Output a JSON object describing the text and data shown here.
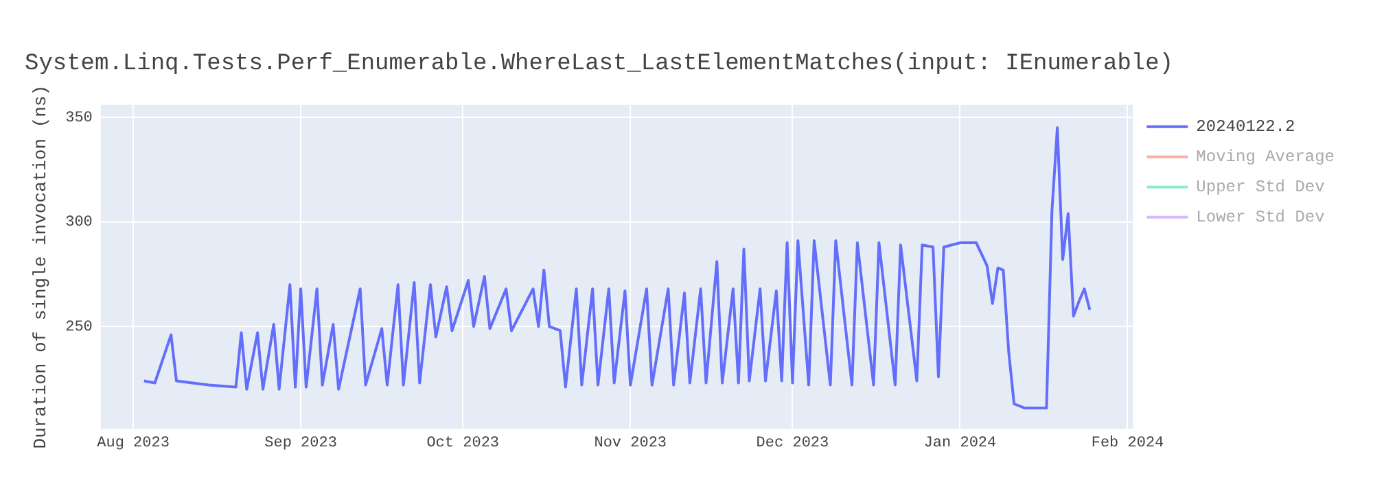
{
  "chart_data": {
    "type": "line",
    "title": "System.Linq.Tests.Perf_Enumerable.WhereLast_LastElementMatches(input: IEnumerable)",
    "ylabel": "Duration of single invocation (ns)",
    "x": [
      "2023-08-03",
      "2023-08-05",
      "2023-08-08",
      "2023-08-09",
      "2023-08-12",
      "2023-08-15",
      "2023-08-20",
      "2023-08-21",
      "2023-08-22",
      "2023-08-24",
      "2023-08-25",
      "2023-08-27",
      "2023-08-28",
      "2023-08-30",
      "2023-08-31",
      "2023-09-01",
      "2023-09-02",
      "2023-09-04",
      "2023-09-05",
      "2023-09-07",
      "2023-09-08",
      "2023-09-12",
      "2023-09-13",
      "2023-09-16",
      "2023-09-17",
      "2023-09-19",
      "2023-09-20",
      "2023-09-22",
      "2023-09-23",
      "2023-09-25",
      "2023-09-26",
      "2023-09-28",
      "2023-09-29",
      "2023-10-02",
      "2023-10-03",
      "2023-10-05",
      "2023-10-06",
      "2023-10-09",
      "2023-10-10",
      "2023-10-14",
      "2023-10-15",
      "2023-10-16",
      "2023-10-17",
      "2023-10-19",
      "2023-10-20",
      "2023-10-22",
      "2023-10-23",
      "2023-10-25",
      "2023-10-26",
      "2023-10-28",
      "2023-10-29",
      "2023-10-31",
      "2023-11-01",
      "2023-11-04",
      "2023-11-05",
      "2023-11-08",
      "2023-11-09",
      "2023-11-11",
      "2023-11-12",
      "2023-11-14",
      "2023-11-15",
      "2023-11-17",
      "2023-11-18",
      "2023-11-20",
      "2023-11-21",
      "2023-11-22",
      "2023-11-23",
      "2023-11-25",
      "2023-11-26",
      "2023-11-28",
      "2023-11-29",
      "2023-11-30",
      "2023-12-01",
      "2023-12-02",
      "2023-12-04",
      "2023-12-05",
      "2023-12-08",
      "2023-12-09",
      "2023-12-12",
      "2023-12-13",
      "2023-12-16",
      "2023-12-17",
      "2023-12-20",
      "2023-12-21",
      "2023-12-24",
      "2023-12-25",
      "2023-12-27",
      "2023-12-28",
      "2023-12-29",
      "2024-01-01",
      "2024-01-04",
      "2024-01-06",
      "2024-01-07",
      "2024-01-08",
      "2024-01-09",
      "2024-01-10",
      "2024-01-11",
      "2024-01-13",
      "2024-01-17",
      "2024-01-18",
      "2024-01-19",
      "2024-01-20",
      "2024-01-21",
      "2024-01-22",
      "2024-01-23",
      "2024-01-24",
      "2024-01-25"
    ],
    "series": [
      {
        "name": "20240122.2",
        "color": "#636efa",
        "values": [
          224,
          223,
          246,
          224,
          223,
          222,
          221,
          247,
          220,
          247,
          220,
          251,
          220,
          270,
          221,
          268,
          221,
          268,
          222,
          251,
          220,
          268,
          222,
          249,
          222,
          270,
          222,
          271,
          223,
          270,
          245,
          269,
          248,
          272,
          250,
          274,
          249,
          268,
          248,
          268,
          250,
          277,
          250,
          248,
          221,
          268,
          222,
          268,
          222,
          268,
          223,
          267,
          222,
          268,
          222,
          268,
          222,
          266,
          223,
          268,
          223,
          281,
          223,
          268,
          223,
          287,
          224,
          268,
          224,
          267,
          224,
          290,
          223,
          291,
          222,
          291,
          222,
          291,
          222,
          290,
          222,
          290,
          222,
          289,
          224,
          289,
          288,
          226,
          288,
          290,
          290,
          279,
          261,
          278,
          277,
          238,
          213,
          211,
          211,
          305,
          345,
          282,
          304,
          255,
          262,
          268,
          258
        ]
      },
      {
        "name": "Moving Average",
        "color": "#ef553b",
        "values": [
          null,
          null,
          null,
          null,
          null,
          null,
          null,
          null,
          null,
          null,
          null,
          null,
          null,
          null,
          null,
          null,
          null,
          null,
          null,
          null,
          null,
          null,
          null,
          null,
          null,
          null,
          null,
          null,
          null,
          null,
          null,
          null,
          null,
          null,
          null,
          null,
          null,
          null,
          null,
          null,
          null,
          null,
          null,
          null,
          null,
          null,
          null,
          null,
          null,
          null,
          null,
          null,
          null,
          null,
          null,
          null,
          null,
          null,
          null,
          null,
          null,
          null,
          null,
          null,
          null,
          null,
          null,
          null,
          null,
          null,
          null,
          null,
          null,
          null,
          null,
          null,
          null,
          null,
          null,
          null,
          null,
          null,
          null,
          null,
          null,
          null,
          null,
          null,
          null,
          null,
          null,
          null,
          null,
          null,
          null,
          null,
          null,
          null,
          null,
          null,
          null,
          null,
          null,
          null,
          null,
          null,
          null
        ]
      },
      {
        "name": "Upper Std Dev",
        "color": "#00cc96",
        "values": [
          null,
          null,
          null,
          null,
          null,
          null,
          null,
          null,
          null,
          null,
          null,
          null,
          null,
          null,
          null,
          null,
          null,
          null,
          null,
          null,
          null,
          null,
          null,
          null,
          null,
          null,
          null,
          null,
          null,
          null,
          null,
          null,
          null,
          null,
          null,
          null,
          null,
          null,
          null,
          null,
          null,
          null,
          null,
          null,
          null,
          null,
          null,
          null,
          null,
          null,
          null,
          null,
          null,
          null,
          null,
          null,
          null,
          null,
          null,
          null,
          null,
          null,
          null,
          null,
          null,
          null,
          null,
          null,
          null,
          null,
          null,
          null,
          null,
          null,
          null,
          null,
          null,
          null,
          null,
          null,
          null,
          null,
          null,
          null,
          null,
          null,
          null,
          null,
          null,
          null,
          null,
          null,
          null,
          null,
          null,
          null,
          null,
          null,
          null,
          null,
          null,
          null,
          null,
          null,
          null,
          null,
          null
        ]
      },
      {
        "name": "Lower Std Dev",
        "color": "#ab63fa",
        "values": [
          null,
          null,
          null,
          null,
          null,
          null,
          null,
          null,
          null,
          null,
          null,
          null,
          null,
          null,
          null,
          null,
          null,
          null,
          null,
          null,
          null,
          null,
          null,
          null,
          null,
          null,
          null,
          null,
          null,
          null,
          null,
          null,
          null,
          null,
          null,
          null,
          null,
          null,
          null,
          null,
          null,
          null,
          null,
          null,
          null,
          null,
          null,
          null,
          null,
          null,
          null,
          null,
          null,
          null,
          null,
          null,
          null,
          null,
          null,
          null,
          null,
          null,
          null,
          null,
          null,
          null,
          null,
          null,
          null,
          null,
          null,
          null,
          null,
          null,
          null,
          null,
          null,
          null,
          null,
          null,
          null,
          null,
          null,
          null,
          null,
          null,
          null,
          null,
          null,
          null,
          null,
          null,
          null,
          null,
          null,
          null,
          null,
          null,
          null,
          null,
          null,
          null,
          null,
          null,
          null,
          null,
          null
        ]
      }
    ],
    "xlim": [
      "2023-07-26",
      "2024-02-02"
    ],
    "xticks": [
      {
        "value": "2023-08-01",
        "label": "Aug 2023"
      },
      {
        "value": "2023-09-01",
        "label": "Sep 2023"
      },
      {
        "value": "2023-10-01",
        "label": "Oct 2023"
      },
      {
        "value": "2023-11-01",
        "label": "Nov 2023"
      },
      {
        "value": "2023-12-01",
        "label": "Dec 2023"
      },
      {
        "value": "2024-01-01",
        "label": "Jan 2024"
      },
      {
        "value": "2024-02-01",
        "label": "Feb 2024"
      }
    ],
    "ylim": [
      201,
      356
    ],
    "yticks": [
      250,
      300,
      350
    ],
    "grid": true,
    "legend": "top right",
    "marker": "none",
    "line_style": "solid"
  }
}
